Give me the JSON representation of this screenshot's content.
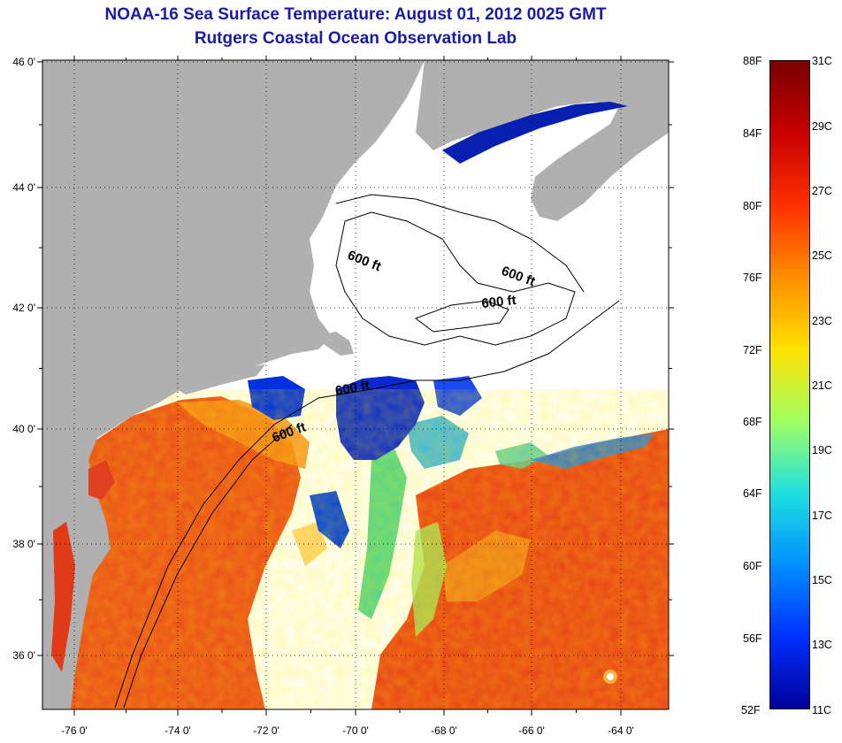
{
  "title": {
    "line1": "NOAA-16 Sea Surface Temperature:  August 01, 2012 0025 GMT",
    "line2": "Rutgers Coastal Ocean Observation Lab"
  },
  "map": {
    "longitude_ticks": [
      "-76 0'",
      "-74 0'",
      "-72 0'",
      "-70 0'",
      "-68 0'",
      "-66 0'",
      "-64 0'"
    ],
    "latitude_ticks": [
      "46 0'",
      "44 0'",
      "42 0'",
      "40 0'",
      "38 0'",
      "36 0'"
    ],
    "contour_labels": [
      "600 ft",
      "600 ft",
      "600 ft",
      "600 ft",
      "600 ft"
    ],
    "colors": {
      "land": "#b0b0b0",
      "cloud": "#ffffff",
      "warm": "#e8401a",
      "cold": "#0020c0"
    }
  },
  "colorbar": {
    "fahrenheit": [
      "88F",
      "84F",
      "80F",
      "76F",
      "72F",
      "68F",
      "64F",
      "60F",
      "56F",
      "52F"
    ],
    "celsius": [
      "31C",
      "29C",
      "27C",
      "25C",
      "23C",
      "21C",
      "19C",
      "17C",
      "15C",
      "13C",
      "11C"
    ],
    "gradient": [
      "#7a0000",
      "#c80000",
      "#ff3000",
      "#ff8c00",
      "#ffe000",
      "#a0ff60",
      "#20e0e0",
      "#0090ff",
      "#0030ff",
      "#00009a"
    ]
  }
}
